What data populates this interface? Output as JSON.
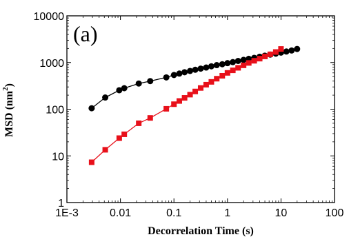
{
  "chart_data": {
    "type": "scatter",
    "panel_label": "(a)",
    "title": "",
    "xlabel": "Decorrelation Time (s)",
    "ylabel_main": "MSD (nm",
    "ylabel_sup": "2",
    "ylabel_tail": ")",
    "xscale": "log",
    "yscale": "log",
    "xlim": [
      0.001,
      100
    ],
    "ylim": [
      1,
      10000
    ],
    "xticks": [
      0.001,
      0.01,
      0.1,
      1,
      10,
      100
    ],
    "xtick_labels": [
      "1E-3",
      "0.01",
      "0.1",
      "1",
      "10",
      "100"
    ],
    "yticks": [
      1,
      10,
      100,
      1000,
      10000
    ],
    "ytick_labels": [
      "1",
      "10",
      "100",
      "1000",
      "10000"
    ],
    "grid": false,
    "legend": "none",
    "series": [
      {
        "color": "#000000",
        "marker": "circle",
        "x": [
          0.0029,
          0.0052,
          0.0095,
          0.0118,
          0.022,
          0.036,
          0.072,
          0.1,
          0.126,
          0.158,
          0.2,
          0.25,
          0.316,
          0.4,
          0.5,
          0.63,
          0.8,
          1.0,
          1.26,
          1.58,
          2.0,
          2.5,
          3.16,
          4.0,
          5.0,
          6.3,
          8.0,
          10.0,
          12.6,
          15.8,
          20.0
        ],
        "y": [
          105,
          178,
          255,
          282,
          355,
          400,
          480,
          540,
          580,
          620,
          660,
          700,
          740,
          780,
          830,
          880,
          920,
          970,
          1020,
          1080,
          1140,
          1200,
          1260,
          1330,
          1400,
          1480,
          1550,
          1630,
          1720,
          1810,
          1950
        ]
      },
      {
        "color": "#e8101a",
        "marker": "square",
        "x": [
          0.0029,
          0.0052,
          0.0095,
          0.0118,
          0.022,
          0.036,
          0.072,
          0.1,
          0.126,
          0.158,
          0.2,
          0.25,
          0.316,
          0.4,
          0.5,
          0.63,
          0.8,
          1.0,
          1.26,
          1.58,
          2.0,
          2.5,
          3.16,
          4.0,
          5.0,
          6.3,
          8.0,
          10.0
        ],
        "y": [
          7.3,
          13.5,
          24,
          29,
          50,
          65,
          102,
          128,
          150,
          175,
          205,
          240,
          285,
          335,
          385,
          450,
          520,
          600,
          680,
          770,
          870,
          980,
          1090,
          1210,
          1350,
          1500,
          1680,
          1950
        ]
      }
    ]
  }
}
